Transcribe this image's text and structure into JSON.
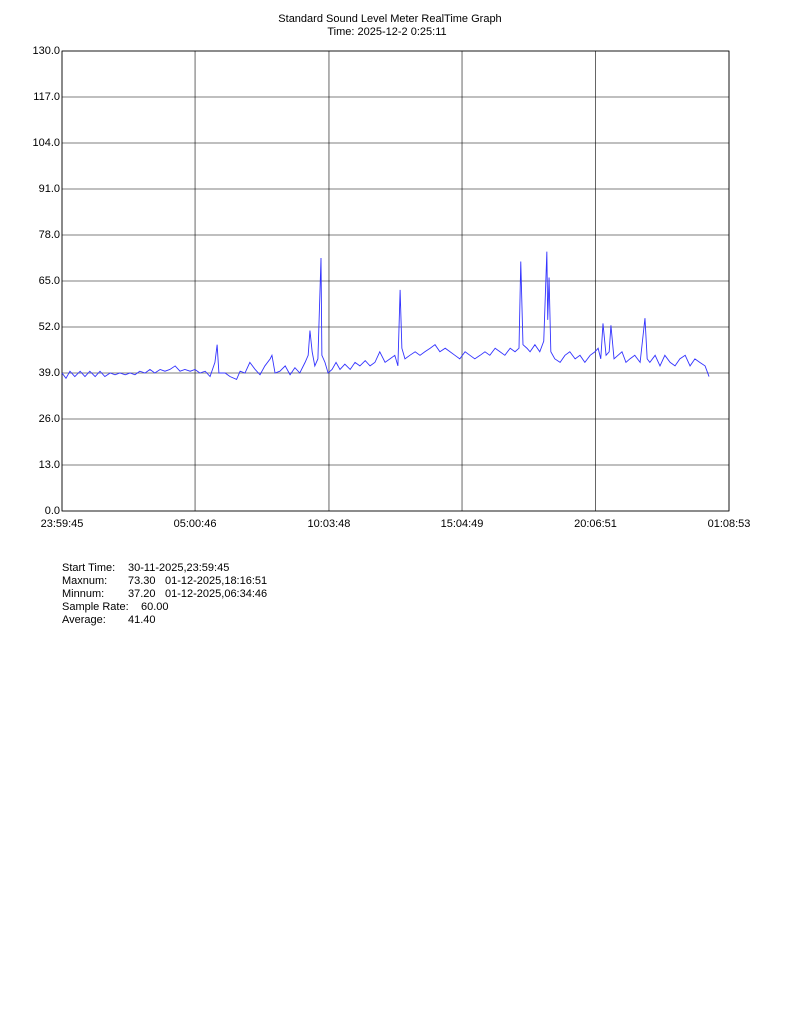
{
  "chart_data": {
    "type": "line",
    "title": "Standard Sound Level Meter RealTime Graph",
    "subtitle": "Time: 2025-12-2  0:25:11",
    "color": "#3333ff",
    "grid": true,
    "xlim": [
      0,
      1509.13
    ],
    "xticks": [
      {
        "value": 0,
        "label": "23:59:45"
      },
      {
        "value": 301.02,
        "label": "05:00:46"
      },
      {
        "value": 604.05,
        "label": "10:03:48"
      },
      {
        "value": 905.07,
        "label": "15:04:49"
      },
      {
        "value": 1207.1,
        "label": "20:06:51"
      },
      {
        "value": 1509.13,
        "label": "01:08:53"
      }
    ],
    "ylim": [
      0,
      130
    ],
    "yticks": [
      {
        "value": 0,
        "label": "0.0"
      },
      {
        "value": 13,
        "label": "13.0"
      },
      {
        "value": 26,
        "label": "26.0"
      },
      {
        "value": 39,
        "label": "39.0"
      },
      {
        "value": 52,
        "label": "52.0"
      },
      {
        "value": 65,
        "label": "65.0"
      },
      {
        "value": 78,
        "label": "78.0"
      },
      {
        "value": 91,
        "label": "91.0"
      },
      {
        "value": 104,
        "label": "104.0"
      },
      {
        "value": 117,
        "label": "117.0"
      },
      {
        "value": 130,
        "label": "130.0"
      }
    ],
    "x": [
      0,
      9,
      18,
      29,
      41,
      52,
      63,
      75,
      86,
      97,
      109,
      120,
      131,
      143,
      154,
      165,
      176,
      188,
      199,
      210,
      222,
      233,
      244,
      256,
      267,
      278,
      290,
      301,
      312,
      324,
      335,
      346,
      351,
      355,
      369,
      380,
      395,
      403,
      414,
      425,
      437,
      448,
      459,
      471,
      475,
      482,
      493,
      505,
      516,
      527,
      538,
      550,
      557,
      561,
      566,
      572,
      579,
      586,
      588,
      595,
      602,
      611,
      620,
      629,
      640,
      652,
      663,
      674,
      686,
      697,
      708,
      719,
      731,
      742,
      753,
      760,
      765,
      769,
      776,
      787,
      799,
      810,
      821,
      833,
      844,
      855,
      867,
      878,
      889,
      900,
      912,
      923,
      934,
      946,
      957,
      968,
      980,
      991,
      1002,
      1014,
      1025,
      1034,
      1038,
      1043,
      1052,
      1059,
      1070,
      1081,
      1090,
      1097,
      1099,
      1102,
      1106,
      1115,
      1127,
      1138,
      1149,
      1161,
      1172,
      1183,
      1195,
      1206,
      1213,
      1219,
      1224,
      1231,
      1238,
      1242,
      1249,
      1258,
      1267,
      1276,
      1285,
      1296,
      1308,
      1319,
      1324,
      1330,
      1342,
      1353,
      1364,
      1376,
      1387,
      1398,
      1410,
      1421,
      1432,
      1443,
      1455,
      1464
    ],
    "values": [
      39,
      37.5,
      39.5,
      38,
      39.5,
      38,
      39.5,
      38,
      39.5,
      38,
      39,
      38.5,
      39,
      38.5,
      39,
      38.5,
      39.5,
      39,
      40,
      39,
      40,
      39.5,
      40,
      41,
      39.5,
      40,
      39.5,
      40,
      39,
      39.5,
      38,
      42,
      47,
      39,
      39,
      38,
      37.2,
      39.5,
      39,
      42,
      40,
      38.5,
      41,
      43,
      44,
      39,
      39.5,
      41,
      38.5,
      40.5,
      39,
      42,
      44,
      51,
      45,
      41,
      43,
      71.5,
      44,
      42,
      39,
      40,
      42,
      40,
      41.5,
      40,
      42,
      41,
      42.5,
      41,
      42,
      45,
      42,
      43,
      44,
      41,
      62.5,
      46,
      43,
      44,
      45,
      44,
      45,
      46,
      47,
      45,
      46,
      45,
      44,
      43,
      45,
      44,
      43,
      44,
      45,
      44,
      46,
      45,
      44,
      46,
      45,
      46,
      70.5,
      47,
      46,
      45,
      47,
      45,
      48,
      73.3,
      54,
      66,
      45,
      43,
      42,
      44,
      45,
      43,
      44,
      42,
      44,
      45,
      46,
      43,
      53,
      44,
      45,
      52.5,
      43,
      44,
      45,
      42,
      43,
      44,
      42,
      54.5,
      43,
      42,
      44,
      41,
      44,
      42,
      41,
      43,
      44,
      41,
      43,
      42,
      41,
      38
    ],
    "summary": [
      {
        "label": "Start Time:",
        "value": "30-11-2025,23:59:45"
      },
      {
        "label": "Maxnum:",
        "value": "73.30",
        "time": "01-12-2025,18:16:51"
      },
      {
        "label": "Minnum:",
        "value": "37.20",
        "time": "01-12-2025,06:34:46"
      },
      {
        "label": "Sample Rate:",
        "value": "60.00"
      },
      {
        "label": "Average:",
        "value": "41.40"
      }
    ]
  }
}
